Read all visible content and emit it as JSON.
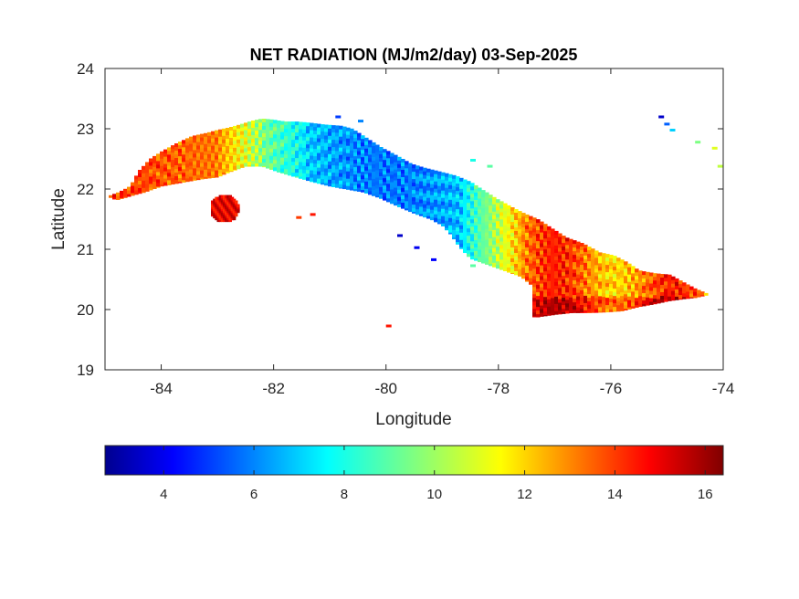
{
  "title": "NET RADIATION (MJ/m2/day) 03-Sep-2025",
  "colors": {
    "axis": "#262626",
    "background": "#ffffff",
    "colormap": [
      "#00008f",
      "#0000ff",
      "#0080ff",
      "#00ffff",
      "#80ff80",
      "#ffff00",
      "#ff8000",
      "#ff0000",
      "#800000"
    ]
  },
  "chart_data": {
    "type": "heatmap",
    "title": "NET RADIATION (MJ/m2/day) 03-Sep-2025",
    "xlabel": "Longitude",
    "ylabel": "Latitude",
    "xlim": [
      -85,
      -74
    ],
    "ylim": [
      19,
      24
    ],
    "xticks": [
      -84,
      -82,
      -80,
      -78,
      -76,
      -74
    ],
    "yticks": [
      19,
      20,
      21,
      22,
      23,
      24
    ],
    "x_tick_labels": [
      "-84",
      "-82",
      "-80",
      "-78",
      "-76",
      "-74"
    ],
    "y_tick_labels": [
      "19",
      "20",
      "21",
      "22",
      "23",
      "24"
    ],
    "colormap": "jet",
    "colorbar": {
      "orientation": "horizontal",
      "location": "bottom",
      "range": [
        2.7,
        16.4
      ],
      "ticks": [
        4,
        6,
        8,
        10,
        12,
        14,
        16
      ],
      "tick_labels": [
        "4",
        "6",
        "8",
        "10",
        "12",
        "14",
        "16"
      ]
    },
    "regions": [
      {
        "name": "western Cuba",
        "lon": [
          -84.95,
          -82.5
        ],
        "value_range": [
          10,
          15
        ]
      },
      {
        "name": "Isla de la Juventud",
        "lon": [
          -83.2,
          -82.6
        ],
        "value_range": [
          14,
          16
        ]
      },
      {
        "name": "central Cuba",
        "lon": [
          -81.5,
          -78.5
        ],
        "value_range": [
          5,
          8
        ]
      },
      {
        "name": "eastern Cuba",
        "lon": [
          -77.8,
          -74.2
        ],
        "value_range": [
          12,
          16
        ]
      }
    ]
  }
}
